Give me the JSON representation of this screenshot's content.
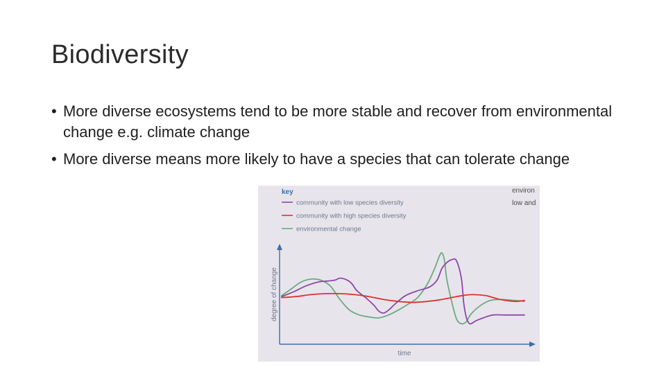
{
  "slide": {
    "title": "Biodiversity",
    "bullet_symbol": "•",
    "bullets": [
      "More diverse ecosystems tend to be more stable and recover from environmental change e.g. climate change",
      "More diverse means more likely to have a species that can tolerate change"
    ]
  },
  "chart_data": {
    "type": "line",
    "key_title": "key",
    "xlabel": "time",
    "ylabel": "degree of change",
    "axis_color": "#3a6fa8",
    "background_color": "#e8e4ec",
    "xlim": [
      0,
      100
    ],
    "ylim": [
      0,
      100
    ],
    "grid": false,
    "legend_position": "top-left",
    "cut_off_text": [
      "environ",
      "low and"
    ],
    "series": [
      {
        "name": "community with low species diversity",
        "color": "#8a48a8",
        "points": [
          [
            0,
            47
          ],
          [
            5,
            52
          ],
          [
            10,
            58
          ],
          [
            15,
            62
          ],
          [
            19,
            63
          ],
          [
            22,
            64
          ],
          [
            24,
            66
          ],
          [
            27,
            64
          ],
          [
            29,
            60
          ],
          [
            31,
            53
          ],
          [
            35,
            45
          ],
          [
            38,
            38
          ],
          [
            40,
            32
          ],
          [
            42,
            30
          ],
          [
            44,
            33
          ],
          [
            47,
            40
          ],
          [
            51,
            48
          ],
          [
            56,
            53
          ],
          [
            61,
            57
          ],
          [
            64,
            64
          ],
          [
            66,
            76
          ],
          [
            68,
            82
          ],
          [
            70,
            85
          ],
          [
            72,
            84
          ],
          [
            74,
            66
          ],
          [
            75,
            40
          ],
          [
            76,
            26
          ],
          [
            77,
            20
          ],
          [
            78,
            19
          ],
          [
            80,
            22
          ],
          [
            83,
            25
          ],
          [
            87,
            28
          ],
          [
            92,
            28
          ],
          [
            100,
            28
          ]
        ]
      },
      {
        "name": "community with high species diversity",
        "color": "#e03030",
        "points": [
          [
            0,
            46
          ],
          [
            6,
            47
          ],
          [
            12,
            49
          ],
          [
            18,
            50
          ],
          [
            24,
            50
          ],
          [
            30,
            49
          ],
          [
            36,
            47
          ],
          [
            42,
            44
          ],
          [
            48,
            42
          ],
          [
            54,
            41
          ],
          [
            60,
            42
          ],
          [
            66,
            44
          ],
          [
            72,
            47
          ],
          [
            78,
            49
          ],
          [
            84,
            48
          ],
          [
            90,
            44
          ],
          [
            96,
            42
          ],
          [
            100,
            43
          ]
        ]
      },
      {
        "name": "environmental change",
        "color": "#6aaa80",
        "points": [
          [
            0,
            48
          ],
          [
            4,
            55
          ],
          [
            8,
            62
          ],
          [
            12,
            65
          ],
          [
            16,
            64
          ],
          [
            20,
            58
          ],
          [
            24,
            44
          ],
          [
            28,
            33
          ],
          [
            32,
            28
          ],
          [
            36,
            26
          ],
          [
            40,
            25
          ],
          [
            44,
            28
          ],
          [
            48,
            33
          ],
          [
            52,
            39
          ],
          [
            56,
            46
          ],
          [
            60,
            60
          ],
          [
            63,
            76
          ],
          [
            65,
            89
          ],
          [
            66,
            92
          ],
          [
            67,
            85
          ],
          [
            68,
            65
          ],
          [
            70,
            42
          ],
          [
            72,
            24
          ],
          [
            74,
            19
          ],
          [
            76,
            21
          ],
          [
            78,
            29
          ],
          [
            82,
            38
          ],
          [
            86,
            43
          ],
          [
            90,
            44
          ],
          [
            96,
            43
          ],
          [
            100,
            42
          ]
        ]
      }
    ]
  }
}
